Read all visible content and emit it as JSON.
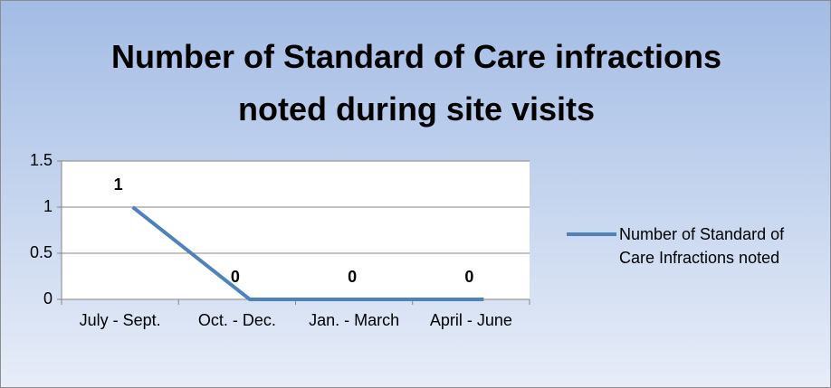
{
  "chart_data": {
    "type": "line",
    "title": "Number of Standard of Care infractions noted during site visits",
    "categories": [
      "July - Sept.",
      "Oct. - Dec.",
      "Jan. - March",
      "April - June"
    ],
    "series": [
      {
        "name": "Number of Standard of Care Infractions noted",
        "color": "#4f81bd",
        "values": [
          1,
          0,
          0,
          0
        ]
      }
    ],
    "ylim": [
      0,
      1.5
    ],
    "yticks": [
      0,
      0.5,
      1,
      1.5
    ],
    "grid": true,
    "legend": "right"
  }
}
